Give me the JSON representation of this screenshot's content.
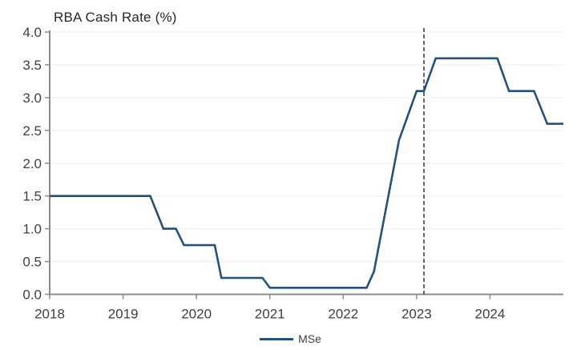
{
  "chart": {
    "title": "RBA Cash Rate (%)",
    "legend": [
      {
        "label": "MSe"
      }
    ]
  },
  "chart_data": {
    "type": "line",
    "title": "RBA Cash Rate (%)",
    "xlabel": "",
    "ylabel": "",
    "x_axis": {
      "ticks": [
        "2018",
        "2019",
        "2020",
        "2021",
        "2022",
        "2023",
        "2024"
      ],
      "tick_values": [
        2018,
        2019,
        2020,
        2021,
        2022,
        2023,
        2024
      ],
      "range": [
        2018,
        2025
      ]
    },
    "y_axis": {
      "ticks": [
        "0.0",
        "0.5",
        "1.0",
        "1.5",
        "2.0",
        "2.5",
        "3.0",
        "3.5",
        "4.0"
      ],
      "tick_values": [
        0,
        0.5,
        1.0,
        1.5,
        2.0,
        2.5,
        3.0,
        3.5,
        4.0
      ],
      "range": [
        0,
        4
      ]
    },
    "grid": "horizontal-faint",
    "legend_position": "bottom-center",
    "series": [
      {
        "name": "MSe",
        "color": "#25517E",
        "points": [
          [
            2018.0,
            1.5
          ],
          [
            2019.37,
            1.5
          ],
          [
            2019.55,
            1.0
          ],
          [
            2019.72,
            1.0
          ],
          [
            2019.83,
            0.75
          ],
          [
            2020.25,
            0.75
          ],
          [
            2020.34,
            0.25
          ],
          [
            2020.9,
            0.25
          ],
          [
            2021.0,
            0.1
          ],
          [
            2022.32,
            0.1
          ],
          [
            2022.42,
            0.35
          ],
          [
            2022.76,
            2.35
          ],
          [
            2023.0,
            3.1
          ],
          [
            2023.1,
            3.1
          ],
          [
            2023.26,
            3.6
          ],
          [
            2024.1,
            3.6
          ],
          [
            2024.26,
            3.1
          ],
          [
            2024.6,
            3.1
          ],
          [
            2024.78,
            2.6
          ],
          [
            2025.0,
            2.6
          ]
        ]
      }
    ],
    "annotations": [
      {
        "type": "vline",
        "x": 2023.1,
        "style": "dashed",
        "color": "#262626"
      }
    ]
  },
  "colors": {
    "series_line": "#25517E",
    "axis": "#8C8C8C",
    "grid": "#EFEFEF",
    "tick_text": "#404040",
    "title_text": "#262626",
    "annotation_line": "#262626"
  }
}
